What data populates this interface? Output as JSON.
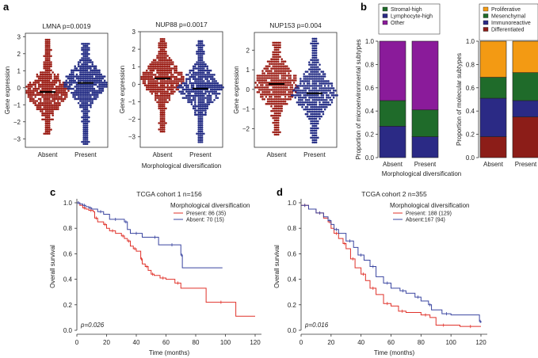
{
  "panels": {
    "a": "a",
    "b": "b",
    "c": "c",
    "d": "d"
  },
  "chart_data": [
    {
      "type": "scatter",
      "subtype": "beeswarm",
      "panel": "a",
      "title": "LMNA",
      "pvalue": "p=0.0019",
      "ylabel": "Gene expression",
      "xlabel": "",
      "categories": [
        "Absent",
        "Present"
      ],
      "medians": [
        -0.25,
        0.28
      ],
      "ylim": [
        -3.5,
        3.2
      ],
      "yticks": [
        "3",
        "2",
        "1",
        "0",
        "−1",
        "−2",
        "−3"
      ],
      "ytick_values": [
        3,
        2,
        1,
        0,
        -1,
        -2,
        -3
      ],
      "range_absent": [
        -2.7,
        2.85
      ],
      "range_present": [
        -3.3,
        2.7
      ],
      "colors": [
        "#9c1f17",
        "#262f86"
      ]
    },
    {
      "type": "scatter",
      "subtype": "beeswarm",
      "panel": "a",
      "title": "NUP88",
      "pvalue": "p=0.0017",
      "ylabel": "Gene expression",
      "xlabel": "Morphological diversification",
      "categories": [
        "Absent",
        "Present"
      ],
      "medians": [
        0.33,
        -0.25
      ],
      "ylim": [
        -3.6,
        3.0
      ],
      "yticks": [
        "3",
        "2",
        "1",
        "0",
        "−1",
        "−2",
        "−3"
      ],
      "ytick_values": [
        3,
        2,
        1,
        0,
        -1,
        -2,
        -3
      ],
      "range_absent": [
        -2.7,
        2.7
      ],
      "range_present": [
        -3.3,
        2.5
      ],
      "colors": [
        "#9c1f17",
        "#262f86"
      ]
    },
    {
      "type": "scatter",
      "subtype": "beeswarm",
      "panel": "a",
      "title": "NUP153",
      "pvalue": "p=0.004",
      "ylabel": "Gene expression",
      "xlabel": "",
      "categories": [
        "Absent",
        "Present"
      ],
      "medians": [
        0.28,
        -0.2
      ],
      "ylim": [
        -2.95,
        2.9
      ],
      "yticks": [
        "2",
        "1",
        "0",
        "−1",
        "−2"
      ],
      "ytick_values": [
        2,
        1,
        0,
        -1,
        -2
      ],
      "range_absent": [
        -2.3,
        2.4
      ],
      "range_present": [
        -2.7,
        2.6
      ],
      "colors": [
        "#9c1f17",
        "#262f86"
      ]
    },
    {
      "type": "bar",
      "subtype": "stacked",
      "panel": "b",
      "ylabel": "Proportion of microenvironmental subtypes",
      "xlabel": "Morphological diversification",
      "categories": [
        "Absent",
        "Present"
      ],
      "ylim": [
        0,
        1
      ],
      "yticks": [
        "0.0",
        "0.2",
        "0.4",
        "0.6",
        "0.8",
        "1.0"
      ],
      "series": [
        {
          "name": "Lymphocyte-high",
          "color": "#2b2a85",
          "values": [
            0.27,
            0.18
          ]
        },
        {
          "name": "Stromal-high",
          "color": "#1f6b2a",
          "values": [
            0.22,
            0.23
          ]
        },
        {
          "name": "Other",
          "color": "#8a1b9a",
          "values": [
            0.51,
            0.59
          ]
        }
      ],
      "legend_order": [
        "Stromal-high",
        "Lymphocyte-high",
        "Other"
      ],
      "legend": "top"
    },
    {
      "type": "bar",
      "subtype": "stacked",
      "panel": "b",
      "ylabel": "Proportion of molecular subtypes",
      "xlabel": "Morphological diversification",
      "categories": [
        "Absent",
        "Present"
      ],
      "ylim": [
        0,
        1
      ],
      "yticks": [
        "0.0",
        "0.2",
        "0.4",
        "0.6",
        "0.8",
        "1.0"
      ],
      "series": [
        {
          "name": "Differentiated",
          "color": "#8c1d18",
          "values": [
            0.18,
            0.35
          ]
        },
        {
          "name": "Immunoreactive",
          "color": "#2b2a85",
          "values": [
            0.33,
            0.14
          ]
        },
        {
          "name": "Mesenchymal",
          "color": "#1f6b2a",
          "values": [
            0.18,
            0.24
          ]
        },
        {
          "name": "Proliferative",
          "color": "#f39a13",
          "values": [
            0.31,
            0.27
          ]
        }
      ],
      "legend_order": [
        "Proliferative",
        "Mesenchymal",
        "Immunoreactive",
        "Differentiated"
      ],
      "legend": "top"
    },
    {
      "type": "line",
      "subtype": "kaplan-meier",
      "panel": "c",
      "title": "TCGA cohort 1 n=156",
      "xlabel": "Time (months)",
      "ylabel": "Overall survival",
      "xlim": [
        0,
        120
      ],
      "ylim": [
        0,
        1
      ],
      "xticks": [
        "0",
        "20",
        "40",
        "60",
        "80",
        "100",
        "120"
      ],
      "yticks": [
        "0.0",
        "0.2",
        "0.4",
        "0.6",
        "0.8",
        "1.0"
      ],
      "pvalue": "p=0.026",
      "legend_title": "Morphological diversification",
      "legend": "top-right",
      "series": [
        {
          "name": "Present: 86 (35)",
          "color": "#e0322a",
          "x": [
            0,
            2,
            4,
            6,
            8,
            11,
            12,
            14,
            18,
            20,
            22,
            26,
            30,
            32,
            34,
            36,
            38,
            40,
            43,
            44,
            46,
            48,
            50,
            52,
            56,
            60,
            66,
            70,
            87,
            107,
            120
          ],
          "y": [
            1.0,
            0.98,
            0.96,
            0.95,
            0.94,
            0.93,
            0.88,
            0.85,
            0.83,
            0.8,
            0.78,
            0.76,
            0.74,
            0.72,
            0.7,
            0.66,
            0.64,
            0.62,
            0.56,
            0.52,
            0.5,
            0.47,
            0.44,
            0.43,
            0.41,
            0.4,
            0.37,
            0.33,
            0.22,
            0.11,
            0.11
          ]
        },
        {
          "name": "Absent: 70 (15)",
          "color": "#3a45a0",
          "x": [
            0,
            2,
            4,
            6,
            8,
            10,
            14,
            18,
            22,
            30,
            32,
            34,
            36,
            44,
            50,
            55,
            60,
            68,
            70,
            71,
            98
          ],
          "y": [
            1.0,
            0.99,
            0.98,
            0.97,
            0.96,
            0.95,
            0.93,
            0.91,
            0.87,
            0.87,
            0.85,
            0.79,
            0.76,
            0.73,
            0.73,
            0.67,
            0.67,
            0.67,
            0.59,
            0.49,
            0.49
          ]
        }
      ]
    },
    {
      "type": "line",
      "subtype": "kaplan-meier",
      "panel": "d",
      "title": "TCGA cohort 2 n=355",
      "xlabel": "Time (months)",
      "ylabel": "Overall survival",
      "xlim": [
        0,
        120
      ],
      "ylim": [
        0,
        1
      ],
      "xticks": [
        "0",
        "20",
        "40",
        "60",
        "80",
        "100",
        "120"
      ],
      "yticks": [
        "0.0",
        "0.2",
        "0.4",
        "0.6",
        "0.8",
        "1.0"
      ],
      "pvalue": "p=0.016",
      "legend_title": "Morphological diversification",
      "legend": "top-right",
      "series": [
        {
          "name": "Present: 188 (129)",
          "color": "#e0322a",
          "x": [
            0,
            5,
            10,
            15,
            18,
            20,
            22,
            25,
            28,
            30,
            33,
            36,
            40,
            43,
            46,
            50,
            55,
            60,
            65,
            70,
            80,
            86,
            90,
            100,
            106,
            120
          ],
          "y": [
            0.98,
            0.95,
            0.92,
            0.88,
            0.85,
            0.8,
            0.76,
            0.72,
            0.68,
            0.64,
            0.56,
            0.49,
            0.44,
            0.39,
            0.33,
            0.28,
            0.21,
            0.19,
            0.15,
            0.14,
            0.12,
            0.1,
            0.04,
            0.04,
            0.03,
            0.03
          ]
        },
        {
          "name": "Absent:167 (94)",
          "color": "#3a45a0",
          "x": [
            0,
            5,
            10,
            15,
            18,
            20,
            22,
            25,
            30,
            35,
            38,
            42,
            46,
            50,
            55,
            60,
            66,
            70,
            76,
            80,
            85,
            87,
            94,
            100,
            119,
            120
          ],
          "y": [
            0.98,
            0.95,
            0.92,
            0.89,
            0.86,
            0.83,
            0.79,
            0.76,
            0.7,
            0.65,
            0.59,
            0.55,
            0.5,
            0.42,
            0.37,
            0.33,
            0.31,
            0.29,
            0.26,
            0.23,
            0.2,
            0.16,
            0.13,
            0.12,
            0.07,
            0.06
          ]
        }
      ]
    }
  ]
}
